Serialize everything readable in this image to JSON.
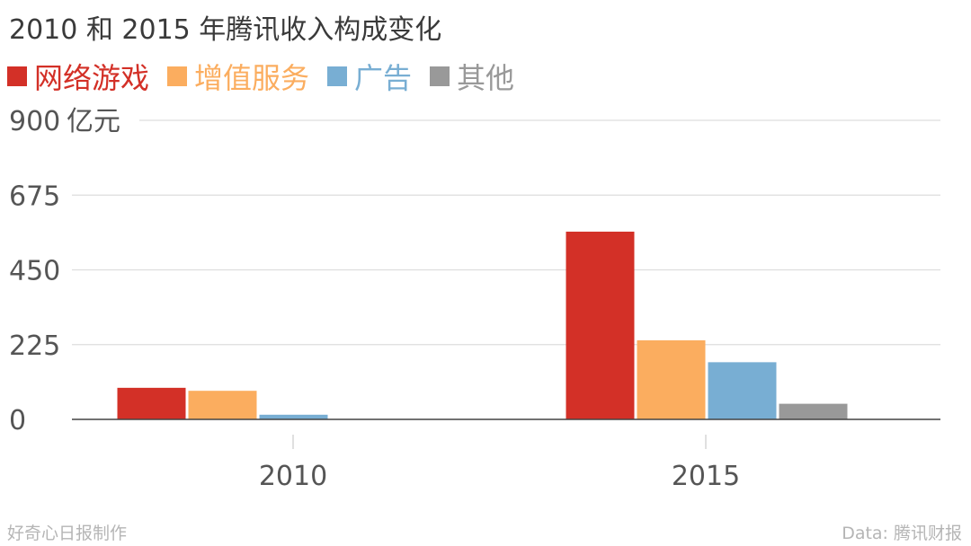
{
  "chart_data": {
    "type": "bar",
    "title": "2010 和 2015 年腾讯收入构成变化",
    "categories": [
      "2010",
      "2015"
    ],
    "series": [
      {
        "name": "网络游戏",
        "color": "#d33027",
        "values": [
          95,
          565
        ]
      },
      {
        "name": "增值服务",
        "color": "#fbad5f",
        "values": [
          86,
          238
        ]
      },
      {
        "name": "广告",
        "color": "#78aed3",
        "values": [
          14,
          172
        ]
      },
      {
        "name": "其他",
        "color": "#999999",
        "values": [
          1,
          47
        ]
      }
    ],
    "y_ticks": [
      "0",
      "225",
      "450",
      "675",
      "900"
    ],
    "y_unit": "亿元",
    "ylim": [
      0,
      900
    ],
    "grid": true,
    "legend_position": "top-left"
  },
  "footer": {
    "credit": "好奇心日报制作",
    "source": "Data: 腾讯财报"
  }
}
